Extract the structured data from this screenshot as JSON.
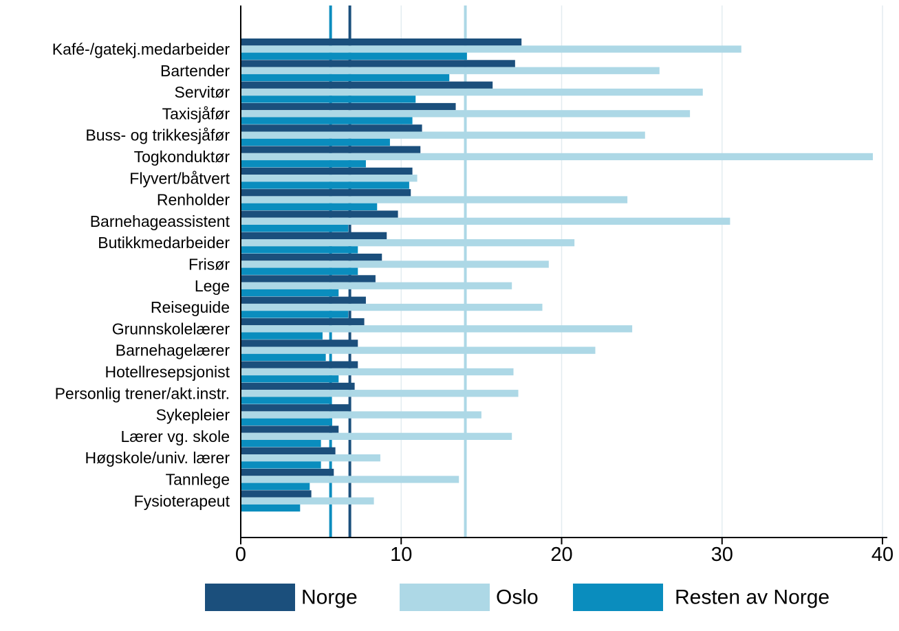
{
  "chart_data": {
    "type": "bar",
    "orientation": "horizontal",
    "categories": [
      "Kafé-/gatekj.medarbeider",
      "Bartender",
      "Servitør",
      "Taxisjåfør",
      "Buss- og trikkesjåfør",
      "Togkonduktør",
      "Flyvert/båtvert",
      "Renholder",
      "Barnehageassistent",
      "Butikkmedarbeider",
      "Frisør",
      "Lege",
      "Reiseguide",
      "Grunnskolelærer",
      "Barnehagelærer",
      "Hotellresepsjonist",
      "Personlig trener/akt.instr.",
      "Sykepleier",
      "Lærer vg. skole",
      "Høgskole/univ. lærer",
      "Tannlege",
      "Fysioterapeut"
    ],
    "series": [
      {
        "name": "Norge",
        "color": "#1b4f7c",
        "values": [
          17.5,
          17.1,
          15.7,
          13.4,
          11.3,
          11.2,
          10.7,
          10.6,
          9.8,
          9.1,
          8.8,
          8.4,
          7.8,
          7.7,
          7.3,
          7.3,
          7.1,
          6.8,
          6.1,
          5.9,
          5.8,
          4.4
        ]
      },
      {
        "name": "Oslo",
        "color": "#add8e6",
        "values": [
          31.2,
          26.1,
          28.8,
          28.0,
          25.2,
          39.4,
          11.0,
          24.1,
          30.5,
          20.8,
          19.2,
          16.9,
          18.8,
          24.4,
          22.1,
          17.0,
          17.3,
          15.0,
          16.9,
          8.7,
          13.6,
          8.3
        ]
      },
      {
        "name": "Resten av Norge",
        "color": "#0a8dbe",
        "values": [
          14.1,
          13.0,
          10.9,
          10.7,
          9.3,
          7.8,
          10.5,
          8.5,
          6.7,
          7.3,
          7.3,
          6.1,
          6.7,
          5.1,
          5.3,
          6.1,
          5.6,
          5.7,
          5.0,
          5.0,
          4.3,
          3.7
        ]
      }
    ],
    "reference_lines": [
      {
        "series": "Norge",
        "value": 6.8,
        "color": "#1b4f7c"
      },
      {
        "series": "Oslo",
        "value": 14.0,
        "color": "#add8e6"
      },
      {
        "series": "Resten av Norge",
        "value": 5.6,
        "color": "#0a8dbe"
      }
    ],
    "x_ticks": [
      "0",
      "10",
      "20",
      "30",
      "40"
    ],
    "xlim": [
      0,
      40
    ],
    "grid": true,
    "legend_position": "bottom"
  }
}
